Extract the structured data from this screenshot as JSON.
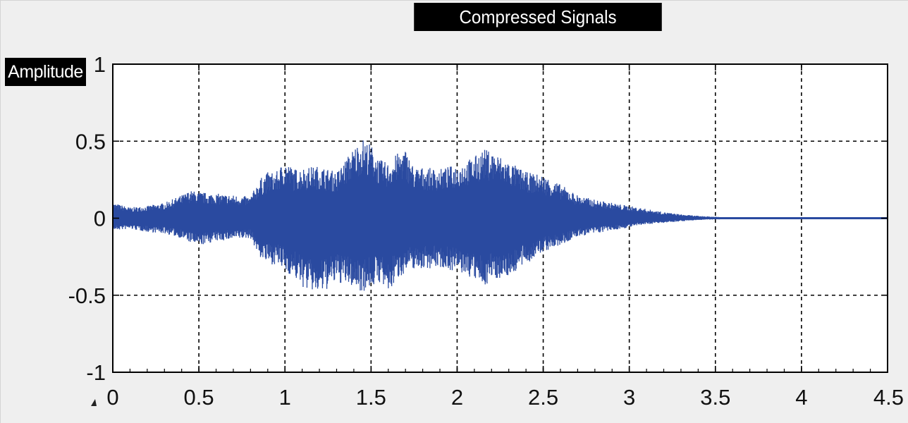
{
  "chart_data": {
    "type": "line",
    "title": "Compressed Signals",
    "xlabel": "",
    "ylabel": "Amplitude",
    "xlim": [
      0,
      4.5
    ],
    "ylim": [
      -1,
      1
    ],
    "grid": true,
    "line_style_grid": "dashed",
    "series_color": "#2a4aa0",
    "xticks": [
      0,
      0.5,
      1,
      1.5,
      2,
      2.5,
      3,
      3.5,
      4,
      4.5
    ],
    "xtick_labels": [
      "0",
      "0.5",
      "1",
      "1.5",
      "2",
      "2.5",
      "3",
      "3.5",
      "4",
      "4.5"
    ],
    "yticks": [
      -1,
      -0.5,
      0,
      0.5,
      1
    ],
    "ytick_labels": [
      "-1",
      "-0.5",
      "0",
      "0.5",
      "1"
    ],
    "series": [
      {
        "envelope_x": [
          0,
          0.1,
          0.2,
          0.3,
          0.4,
          0.45,
          0.5,
          0.6,
          0.7,
          0.8,
          0.85,
          0.9,
          0.95,
          1.0,
          1.05,
          1.1,
          1.2,
          1.3,
          1.4,
          1.45,
          1.5,
          1.55,
          1.6,
          1.65,
          1.7,
          1.75,
          1.8,
          1.9,
          2.0,
          2.1,
          2.15,
          2.2,
          2.3,
          2.4,
          2.5,
          2.6,
          2.7,
          2.8,
          2.9,
          3.0,
          3.1,
          3.2,
          3.3,
          3.4,
          3.5,
          3.6,
          3.8,
          4.0,
          4.2,
          4.4,
          4.5
        ],
        "envelope_upper": [
          0.1,
          0.07,
          0.08,
          0.1,
          0.15,
          0.18,
          0.17,
          0.16,
          0.15,
          0.14,
          0.25,
          0.3,
          0.3,
          0.38,
          0.32,
          0.33,
          0.34,
          0.3,
          0.46,
          0.52,
          0.48,
          0.38,
          0.36,
          0.42,
          0.45,
          0.33,
          0.33,
          0.32,
          0.35,
          0.4,
          0.45,
          0.44,
          0.37,
          0.3,
          0.28,
          0.22,
          0.15,
          0.12,
          0.1,
          0.08,
          0.06,
          0.04,
          0.025,
          0.015,
          0.01,
          0.006,
          0.004,
          0.003,
          0.003,
          0.003,
          0.003
        ],
        "envelope_lower": [
          -0.08,
          -0.07,
          -0.09,
          -0.1,
          -0.13,
          -0.16,
          -0.18,
          -0.15,
          -0.14,
          -0.13,
          -0.25,
          -0.3,
          -0.3,
          -0.35,
          -0.38,
          -0.45,
          -0.5,
          -0.42,
          -0.45,
          -0.48,
          -0.45,
          -0.42,
          -0.5,
          -0.4,
          -0.35,
          -0.33,
          -0.33,
          -0.32,
          -0.35,
          -0.4,
          -0.45,
          -0.4,
          -0.38,
          -0.3,
          -0.22,
          -0.18,
          -0.12,
          -0.1,
          -0.08,
          -0.06,
          -0.04,
          -0.03,
          -0.02,
          -0.012,
          -0.008,
          -0.005,
          -0.004,
          -0.003,
          -0.003,
          -0.003,
          -0.003
        ]
      }
    ]
  }
}
